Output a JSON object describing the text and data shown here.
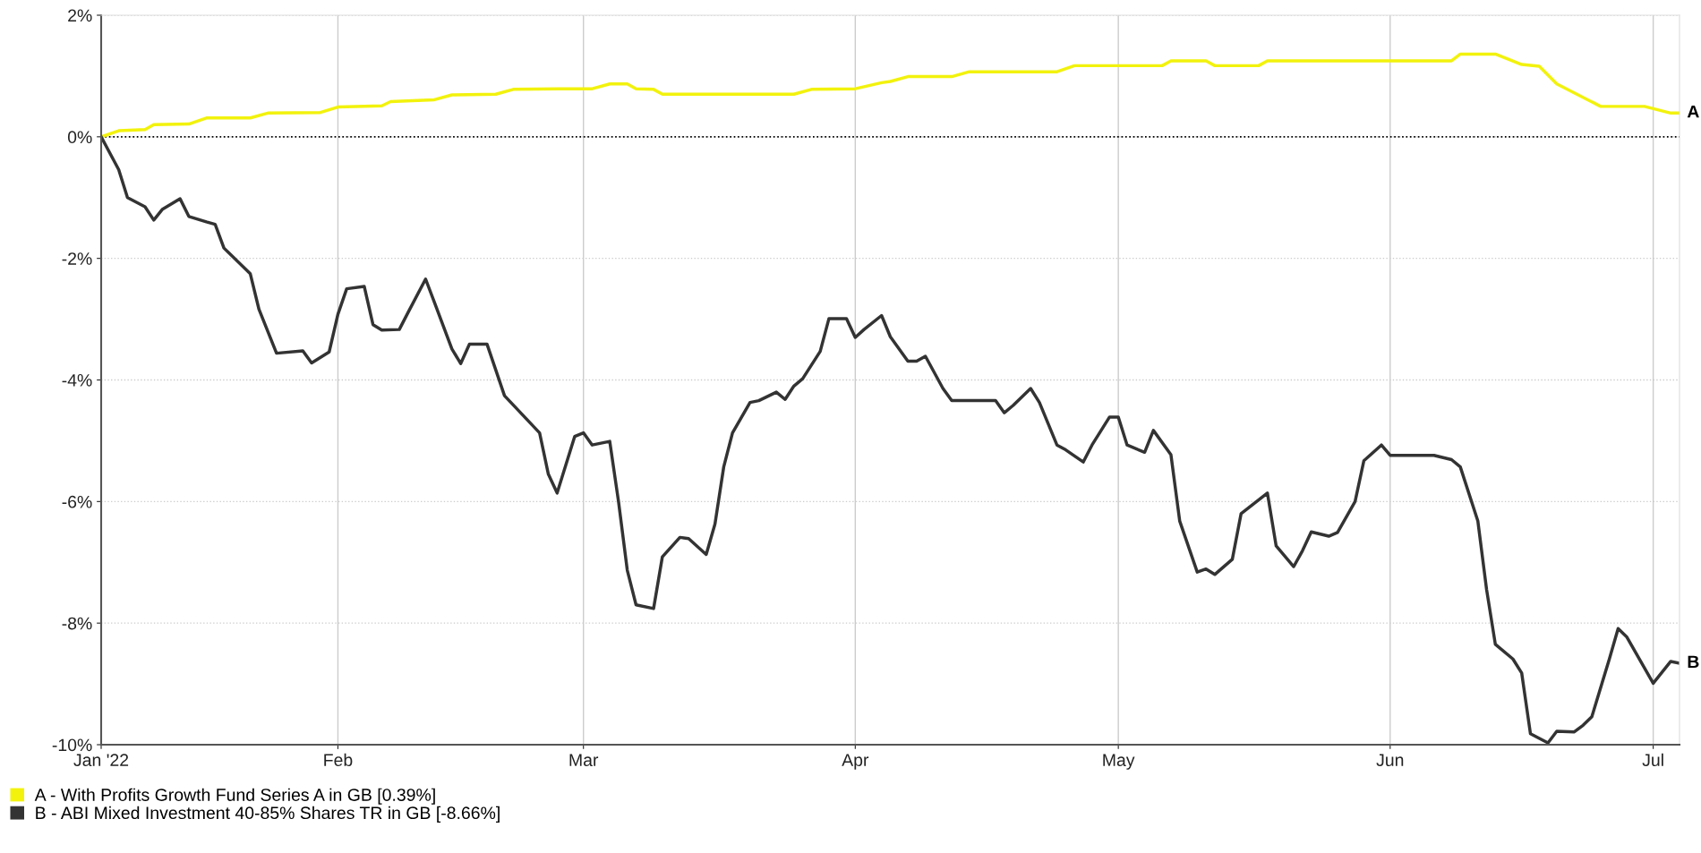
{
  "chart_data": {
    "type": "line",
    "xlim": [
      "2022-01-05",
      "2022-07-04"
    ],
    "xticks": [
      {
        "value": "2022-01-05",
        "label": "Jan '22"
      },
      {
        "value": "2022-02-01",
        "label": "Feb"
      },
      {
        "value": "2022-03-01",
        "label": "Mar"
      },
      {
        "value": "2022-04-01",
        "label": "Apr"
      },
      {
        "value": "2022-05-01",
        "label": "May"
      },
      {
        "value": "2022-06-01",
        "label": "Jun"
      },
      {
        "value": "2022-07-01",
        "label": "Jul"
      }
    ],
    "ylim": [
      -10,
      2
    ],
    "yticks": [
      {
        "value": -10,
        "label": "-10%"
      },
      {
        "value": -8,
        "label": "-8%"
      },
      {
        "value": -6,
        "label": "-6%"
      },
      {
        "value": -4,
        "label": "-4%"
      },
      {
        "value": -2,
        "label": "-2%"
      },
      {
        "value": 0,
        "label": "0%"
      },
      {
        "value": 2,
        "label": "2%"
      }
    ],
    "grid": true,
    "legend": "bottom left",
    "line_style": "solid",
    "marker": "none",
    "ref_lines": [
      {
        "axis": "y",
        "value": 0,
        "color": "#000000",
        "line_style": "dotted"
      }
    ],
    "annotations": [
      {
        "text": "A",
        "x": "2022-07-04",
        "y": 0.39
      },
      {
        "text": "B",
        "x": "2022-07-04",
        "y": -8.66
      }
    ],
    "series": [
      {
        "name": "A - With Profits Growth Fund Series A in GB [0.39%]",
        "color": "#f2f20d",
        "x": [
          "2022-01-05",
          "2022-01-07",
          "2022-01-10",
          "2022-01-11",
          "2022-01-15",
          "2022-01-17",
          "2022-01-22",
          "2022-01-24",
          "2022-01-30",
          "2022-02-01",
          "2022-02-06",
          "2022-02-07",
          "2022-02-12",
          "2022-02-14",
          "2022-02-19",
          "2022-02-21",
          "2022-02-26",
          "2022-03-02",
          "2022-03-04",
          "2022-03-06",
          "2022-03-07",
          "2022-03-09",
          "2022-03-10",
          "2022-03-25",
          "2022-03-27",
          "2022-04-01",
          "2022-04-04",
          "2022-04-05",
          "2022-04-07",
          "2022-04-12",
          "2022-04-14",
          "2022-04-24",
          "2022-04-26",
          "2022-05-01",
          "2022-05-06",
          "2022-05-07",
          "2022-05-11",
          "2022-05-12",
          "2022-05-17",
          "2022-05-18",
          "2022-06-08",
          "2022-06-09",
          "2022-06-13",
          "2022-06-16",
          "2022-06-18",
          "2022-06-20",
          "2022-06-25",
          "2022-06-30",
          "2022-07-03",
          "2022-07-04"
        ],
        "values": [
          0,
          0.1,
          0.12,
          0.2,
          0.21,
          0.31,
          0.31,
          0.39,
          0.4,
          0.49,
          0.51,
          0.58,
          0.61,
          0.69,
          0.7,
          0.78,
          0.79,
          0.79,
          0.87,
          0.87,
          0.79,
          0.78,
          0.7,
          0.7,
          0.78,
          0.79,
          0.89,
          0.91,
          0.99,
          0.99,
          1.07,
          1.07,
          1.17,
          1.17,
          1.17,
          1.25,
          1.25,
          1.17,
          1.17,
          1.25,
          1.25,
          1.36,
          1.36,
          1.19,
          1.16,
          0.87,
          0.5,
          0.5,
          0.39,
          0.39
        ]
      },
      {
        "name": "B - ABI Mixed Investment 40-85% Shares TR in GB [-8.66%]",
        "color": "#333333",
        "x": [
          "2022-01-05",
          "2022-01-07",
          "2022-01-08",
          "2022-01-10",
          "2022-01-11",
          "2022-01-12",
          "2022-01-14",
          "2022-01-15",
          "2022-01-17",
          "2022-01-18",
          "2022-01-19",
          "2022-01-22",
          "2022-01-23",
          "2022-01-25",
          "2022-01-28",
          "2022-01-29",
          "2022-01-31",
          "2022-02-01",
          "2022-02-02",
          "2022-02-04",
          "2022-02-05",
          "2022-02-06",
          "2022-02-08",
          "2022-02-09",
          "2022-02-11",
          "2022-02-12",
          "2022-02-14",
          "2022-02-15",
          "2022-02-16",
          "2022-02-18",
          "2022-02-20",
          "2022-02-24",
          "2022-02-25",
          "2022-02-26",
          "2022-02-28",
          "2022-03-01",
          "2022-03-02",
          "2022-03-04",
          "2022-03-05",
          "2022-03-06",
          "2022-03-07",
          "2022-03-09",
          "2022-03-10",
          "2022-03-12",
          "2022-03-13",
          "2022-03-15",
          "2022-03-16",
          "2022-03-17",
          "2022-03-18",
          "2022-03-20",
          "2022-03-21",
          "2022-03-23",
          "2022-03-24",
          "2022-03-25",
          "2022-03-26",
          "2022-03-28",
          "2022-03-29",
          "2022-03-31",
          "2022-04-01",
          "2022-04-02",
          "2022-04-04",
          "2022-04-05",
          "2022-04-07",
          "2022-04-08",
          "2022-04-09",
          "2022-04-11",
          "2022-04-12",
          "2022-04-17",
          "2022-04-18",
          "2022-04-19",
          "2022-04-21",
          "2022-04-22",
          "2022-04-24",
          "2022-04-25",
          "2022-04-27",
          "2022-04-28",
          "2022-04-30",
          "2022-05-01",
          "2022-05-02",
          "2022-05-04",
          "2022-05-05",
          "2022-05-07",
          "2022-05-08",
          "2022-05-10",
          "2022-05-11",
          "2022-05-12",
          "2022-05-14",
          "2022-05-15",
          "2022-05-18",
          "2022-05-19",
          "2022-05-21",
          "2022-05-22",
          "2022-05-23",
          "2022-05-25",
          "2022-05-26",
          "2022-05-28",
          "2022-05-29",
          "2022-05-31",
          "2022-06-01",
          "2022-06-06",
          "2022-06-08",
          "2022-06-09",
          "2022-06-11",
          "2022-06-12",
          "2022-06-13",
          "2022-06-15",
          "2022-06-16",
          "2022-06-17",
          "2022-06-19",
          "2022-06-20",
          "2022-06-22",
          "2022-06-23",
          "2022-06-24",
          "2022-06-26",
          "2022-06-27",
          "2022-06-28",
          "2022-07-01",
          "2022-07-03",
          "2022-07-04"
        ],
        "values": [
          0,
          -0.54,
          -1.0,
          -1.15,
          -1.37,
          -1.19,
          -1.02,
          -1.31,
          -1.4,
          -1.44,
          -1.83,
          -2.25,
          -2.84,
          -3.56,
          -3.52,
          -3.72,
          -3.54,
          -2.92,
          -2.5,
          -2.46,
          -3.09,
          -3.18,
          -3.17,
          -2.89,
          -2.34,
          -2.72,
          -3.49,
          -3.73,
          -3.41,
          -3.41,
          -4.26,
          -4.87,
          -5.55,
          -5.86,
          -4.93,
          -4.87,
          -5.07,
          -5.01,
          -6.0,
          -7.13,
          -7.7,
          -7.76,
          -6.91,
          -6.59,
          -6.61,
          -6.87,
          -6.37,
          -5.43,
          -4.87,
          -4.37,
          -4.34,
          -4.2,
          -4.32,
          -4.1,
          -3.98,
          -3.53,
          -2.99,
          -2.99,
          -3.3,
          -3.17,
          -2.94,
          -3.29,
          -3.69,
          -3.69,
          -3.61,
          -4.14,
          -4.34,
          -4.34,
          -4.54,
          -4.42,
          -4.14,
          -4.37,
          -5.07,
          -5.15,
          -5.35,
          -5.07,
          -4.61,
          -4.61,
          -5.07,
          -5.19,
          -4.83,
          -5.23,
          -6.32,
          -7.16,
          -7.11,
          -7.2,
          -6.95,
          -6.2,
          -5.86,
          -6.73,
          -7.07,
          -6.81,
          -6.5,
          -6.57,
          -6.51,
          -6.0,
          -5.33,
          -5.07,
          -5.24,
          -5.24,
          -5.31,
          -5.43,
          -6.32,
          -7.45,
          -8.35,
          -8.59,
          -8.82,
          -9.82,
          -9.97,
          -9.78,
          -9.79,
          -9.68,
          -9.54,
          -8.59,
          -8.09,
          -8.23,
          -8.99,
          -8.63,
          -8.66
        ]
      }
    ]
  }
}
